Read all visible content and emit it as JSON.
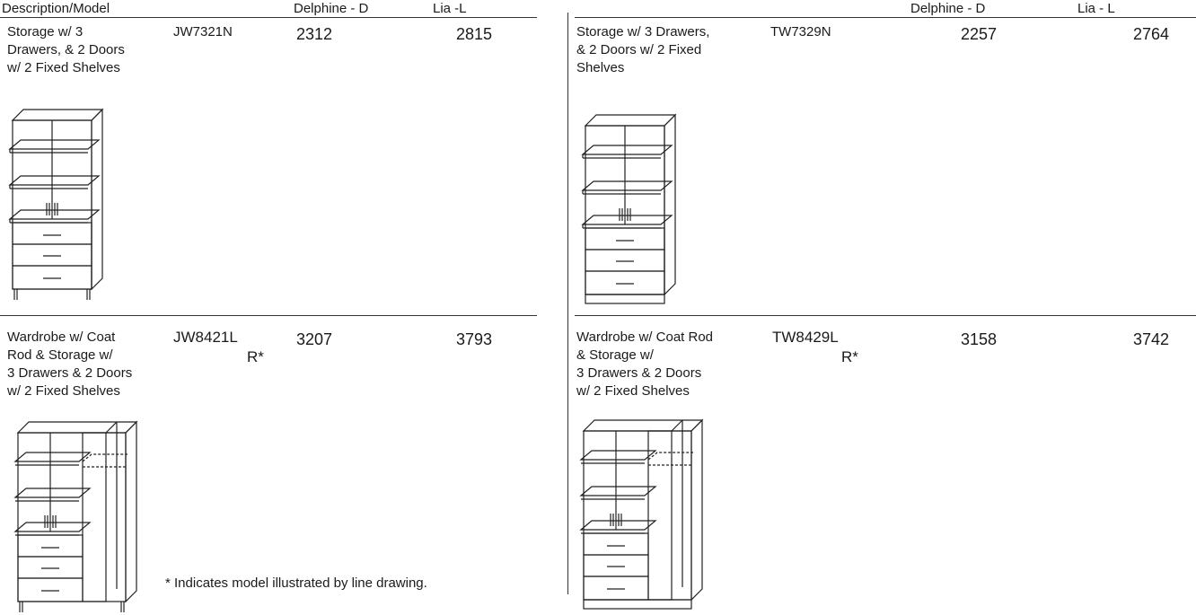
{
  "header": {
    "left": {
      "description_model": "Description/Model",
      "delphine": "Delphine - D",
      "lia": "Lia -L"
    },
    "right": {
      "delphine": "Delphine - D",
      "lia": "Lia - L"
    }
  },
  "items": [
    {
      "description_lines": [
        "Storage w/ 3",
        "Drawers, & 2 Doors",
        "w/ 2 Fixed Shelves"
      ],
      "model": "JW7321N",
      "delphine_price": 2312,
      "lia_price": 2815
    },
    {
      "description_lines": [
        "Storage w/ 3 Drawers,",
        "& 2 Doors w/ 2 Fixed",
        "Shelves"
      ],
      "model": "TW7329N",
      "delphine_price": 2257,
      "lia_price": 2764
    },
    {
      "description_lines": [
        "Wardrobe w/ Coat",
        "Rod & Storage w/",
        "3 Drawers & 2 Doors",
        "w/ 2 Fixed Shelves"
      ],
      "model": "JW8421L",
      "variant": "R*",
      "delphine_price": 3207,
      "lia_price": 3793
    },
    {
      "description_lines": [
        "Wardrobe w/ Coat Rod",
        "& Storage w/",
        "3 Drawers & 2 Doors",
        "w/ 2 Fixed Shelves"
      ],
      "model": "TW8429L",
      "variant": "R*",
      "delphine_price": 3158,
      "lia_price": 3742
    }
  ],
  "footnote": "* Indicates model illustrated by line drawing."
}
